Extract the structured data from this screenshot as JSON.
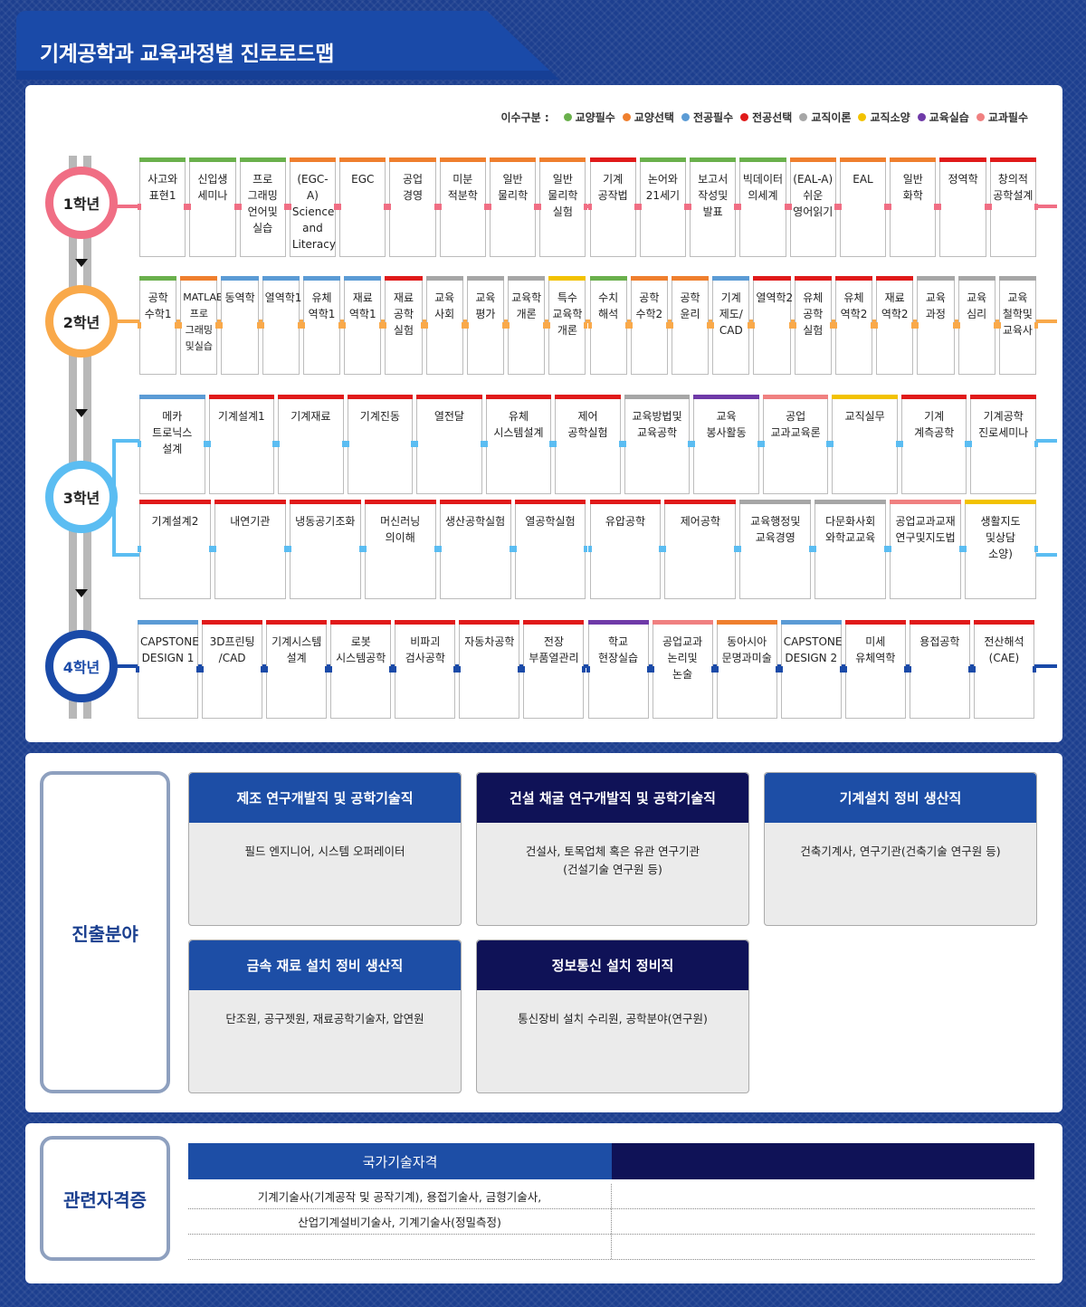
{
  "title": "기계공학과 교육과정별 진로로드맵",
  "legend": {
    "label": "이수구분 :",
    "items": [
      {
        "name": "교양필수",
        "color": "#6ab04c"
      },
      {
        "name": "교양선택",
        "color": "#ef7f2e"
      },
      {
        "name": "전공필수",
        "color": "#5b9bd5"
      },
      {
        "name": "전공선택",
        "color": "#e01a1a"
      },
      {
        "name": "교직이론",
        "color": "#a6a6a6"
      },
      {
        "name": "교직소양",
        "color": "#f2c200"
      },
      {
        "name": "교육실습",
        "color": "#6f3aa8"
      },
      {
        "name": "교과필수",
        "color": "#f08080"
      }
    ]
  },
  "years": [
    {
      "label": "1학년",
      "color": "#f06e84"
    },
    {
      "label": "2학년",
      "color": "#f9a94a"
    },
    {
      "label": "3학년",
      "color": "#5bbdf2"
    },
    {
      "label": "4학년",
      "color": "#1a4aa8"
    }
  ],
  "year1": [
    {
      "name": "사고와\n표현1",
      "cat": "교양필수"
    },
    {
      "name": "신입생\n세미나",
      "cat": "교양필수"
    },
    {
      "name": "프로\n그래밍\n언어및\n실습",
      "cat": "교양필수"
    },
    {
      "name": "(EGC-A)\nScience\nand\nLiteracy",
      "cat": "교양선택"
    },
    {
      "name": "EGC",
      "cat": "교양선택"
    },
    {
      "name": "공업\n경영",
      "cat": "교양선택"
    },
    {
      "name": "미분\n적분학",
      "cat": "교양선택"
    },
    {
      "name": "일반\n물리학",
      "cat": "교양선택"
    },
    {
      "name": "일반\n물리학\n실험",
      "cat": "교양선택"
    },
    {
      "name": "기계\n공작법",
      "cat": "전공선택"
    },
    {
      "name": "논어와\n21세기",
      "cat": "교양필수"
    },
    {
      "name": "보고서\n작성및\n발표",
      "cat": "교양필수"
    },
    {
      "name": "빅데이터\n의세계",
      "cat": "교양필수"
    },
    {
      "name": "(EAL-A)\n쉬운\n영어읽기",
      "cat": "교양선택"
    },
    {
      "name": "EAL",
      "cat": "교양선택"
    },
    {
      "name": "일반\n화학",
      "cat": "교양선택"
    },
    {
      "name": "정역학",
      "cat": "전공선택"
    },
    {
      "name": "창의적\n공학설계",
      "cat": "전공선택"
    }
  ],
  "year2": [
    {
      "name": "공학\n수학1",
      "cat": "교양필수"
    },
    {
      "name": "MATLAB\n프로\n그래밍\n및실습",
      "cat": "교양선택",
      "small": true
    },
    {
      "name": "동역학",
      "cat": "전공필수"
    },
    {
      "name": "열역학1",
      "cat": "전공필수"
    },
    {
      "name": "유체\n역학1",
      "cat": "전공필수"
    },
    {
      "name": "재료\n역학1",
      "cat": "전공필수"
    },
    {
      "name": "재료\n공학\n실험",
      "cat": "전공선택"
    },
    {
      "name": "교육\n사회",
      "cat": "교직이론"
    },
    {
      "name": "교육\n평가",
      "cat": "교직이론"
    },
    {
      "name": "교육학\n개론",
      "cat": "교직이론"
    },
    {
      "name": "특수\n교육학\n개론",
      "cat": "교직소양"
    },
    {
      "name": "수치\n해석",
      "cat": "교양필수"
    },
    {
      "name": "공학\n수학2",
      "cat": "교양선택"
    },
    {
      "name": "공학\n윤리",
      "cat": "교양선택"
    },
    {
      "name": "기계\n제도/\nCAD",
      "cat": "전공필수"
    },
    {
      "name": "열역학2",
      "cat": "전공선택"
    },
    {
      "name": "유체\n공학\n실험",
      "cat": "전공선택"
    },
    {
      "name": "유체\n역학2",
      "cat": "전공선택"
    },
    {
      "name": "재료\n역학2",
      "cat": "전공선택"
    },
    {
      "name": "교육\n과정",
      "cat": "교직이론"
    },
    {
      "name": "교육\n심리",
      "cat": "교직이론"
    },
    {
      "name": "교육\n철학및\n교육사",
      "cat": "교직이론"
    }
  ],
  "year3a": [
    {
      "name": "메카\n트로닉스\n설계",
      "cat": "전공필수"
    },
    {
      "name": "기계설계1",
      "cat": "전공선택"
    },
    {
      "name": "기계재료",
      "cat": "전공선택"
    },
    {
      "name": "기계진동",
      "cat": "전공선택"
    },
    {
      "name": "열전달",
      "cat": "전공선택"
    },
    {
      "name": "유체\n시스템설계",
      "cat": "전공선택"
    },
    {
      "name": "제어\n공학실험",
      "cat": "전공선택"
    },
    {
      "name": "교육방법및\n교육공학",
      "cat": "교직이론"
    },
    {
      "name": "교육\n봉사활동",
      "cat": "교육실습"
    },
    {
      "name": "공업\n교과교육론",
      "cat": "교과필수"
    },
    {
      "name": "교직실무",
      "cat": "교직소양"
    },
    {
      "name": "기계\n계측공학",
      "cat": "전공선택"
    },
    {
      "name": "기계공학\n진로세미나",
      "cat": "전공선택"
    }
  ],
  "year3b": [
    {
      "name": "기계설계2",
      "cat": "전공선택"
    },
    {
      "name": "내연기관",
      "cat": "전공선택"
    },
    {
      "name": "냉동공기조화",
      "cat": "전공선택"
    },
    {
      "name": "머신러닝\n의이해",
      "cat": "전공선택"
    },
    {
      "name": "생산공학실험",
      "cat": "전공선택"
    },
    {
      "name": "열공학실험",
      "cat": "전공선택"
    },
    {
      "name": "유압공학",
      "cat": "전공선택"
    },
    {
      "name": "제어공학",
      "cat": "전공선택"
    },
    {
      "name": "교육행정및\n교육경영",
      "cat": "교직이론"
    },
    {
      "name": "다문화사회\n와학교교육",
      "cat": "교직이론"
    },
    {
      "name": "공업교과교재\n연구및지도법",
      "cat": "교과필수"
    },
    {
      "name": "생활지도\n및상담\n소양)",
      "cat": "교직소양"
    }
  ],
  "year4": [
    {
      "name": "CAPSTONE\nDESIGN 1",
      "cat": "전공필수"
    },
    {
      "name": "3D프린팅\n/CAD",
      "cat": "전공선택"
    },
    {
      "name": "기계시스템\n설계",
      "cat": "전공선택"
    },
    {
      "name": "로봇\n시스템공학",
      "cat": "전공선택"
    },
    {
      "name": "비파괴\n검사공학",
      "cat": "전공선택"
    },
    {
      "name": "자동차공학",
      "cat": "전공선택"
    },
    {
      "name": "전장\n부품열관리",
      "cat": "전공선택"
    },
    {
      "name": "학교\n현장실습",
      "cat": "교육실습"
    },
    {
      "name": "공업교과\n논리및\n논술",
      "cat": "교과필수"
    },
    {
      "name": "동아시아\n문명과미술",
      "cat": "교양선택"
    },
    {
      "name": "CAPSTONE\nDESIGN 2",
      "cat": "전공필수"
    },
    {
      "name": "미세\n유체역학",
      "cat": "전공선택"
    },
    {
      "name": "용접공학",
      "cat": "전공선택"
    },
    {
      "name": "전산해석\n(CAE)",
      "cat": "전공선택"
    }
  ],
  "careers": {
    "label": "진출분야",
    "cards": [
      {
        "title": "제조 연구개발직 및 공학기술직",
        "body": "필드 엔지니어, 시스템 오퍼레이터",
        "color": "#1d4ea6"
      },
      {
        "title": "건설 채굴 연구개발직 및 공학기술직",
        "body": "건설사, 토목업체 혹은 유관 연구기관\n(건설기술 연구원 등)",
        "color": "#0f1257"
      },
      {
        "title": "기계설치 정비 생산직",
        "body": "건축기계사, 연구기관(건축기술 연구원 등)",
        "color": "#1d4ea6"
      },
      {
        "title": "금속 재료 설치 정비 생산직",
        "body": "단조원, 공구젯원, 재료공학기술자, 압연원",
        "color": "#1d4ea6"
      },
      {
        "title": "정보통신 설치 정비직",
        "body": "통신장비 설치 수리원, 공학분야(연구원)",
        "color": "#0f1257"
      }
    ]
  },
  "certs": {
    "label": "관련자격증",
    "header": "국가기술자격",
    "rows": [
      "기계기술사(기계공작 및 공작기계), 용접기술사, 금형기술사,",
      "산업기계설비기술사, 기계기술사(정밀측정)",
      ""
    ]
  }
}
